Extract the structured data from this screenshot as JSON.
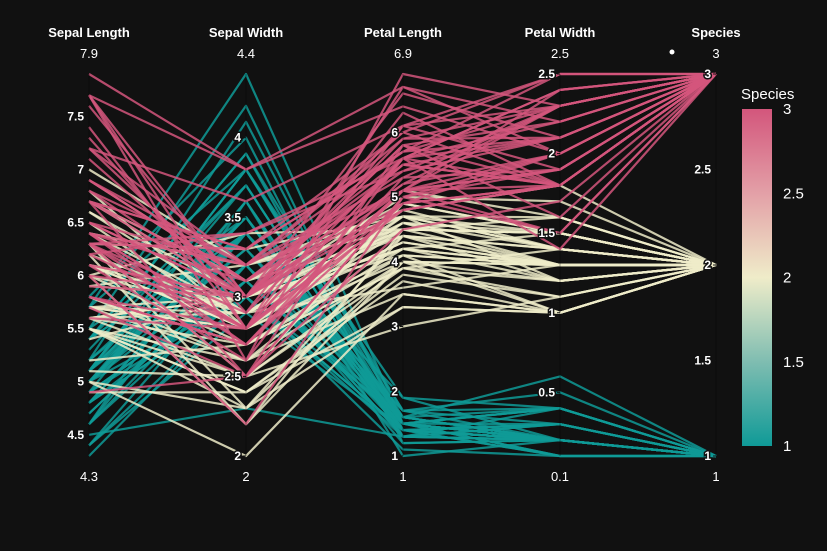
{
  "chart_data": {
    "type": "parallel_coordinates",
    "dimensions": [
      {
        "key": "sepal_length",
        "label": "Sepal Length",
        "range": [
          4.3,
          7.9
        ],
        "min_label": "4.3",
        "max_label": "7.9",
        "ticks": [
          4.5,
          5,
          5.5,
          6,
          6.5,
          7,
          7.5
        ]
      },
      {
        "key": "sepal_width",
        "label": "Sepal Width",
        "range": [
          2,
          4.4
        ],
        "min_label": "2",
        "max_label": "4.4",
        "ticks": [
          2,
          2.5,
          3,
          3.5,
          4
        ]
      },
      {
        "key": "petal_length",
        "label": "Petal Length",
        "range": [
          1,
          6.9
        ],
        "min_label": "1",
        "max_label": "6.9",
        "ticks": [
          1,
          2,
          3,
          4,
          5,
          6
        ]
      },
      {
        "key": "petal_width",
        "label": "Petal Width",
        "range": [
          0.1,
          2.5
        ],
        "min_label": "0.1",
        "max_label": "2.5",
        "ticks": [
          0.5,
          1,
          1.5,
          2,
          2.5
        ]
      },
      {
        "key": "species",
        "label": "Species",
        "range": [
          1,
          3
        ],
        "min_label": "1",
        "max_label": "3",
        "ticks": [
          1,
          1.5,
          2,
          2.5,
          3
        ]
      }
    ],
    "colorscale": {
      "title": "Species",
      "range": [
        1,
        3
      ],
      "ticks": [
        "1",
        "1.5",
        "2",
        "2.5",
        "3"
      ],
      "stops": [
        [
          0,
          "#0f9a97"
        ],
        [
          0.25,
          "#7fbdb1"
        ],
        [
          0.5,
          "#efecc9"
        ],
        [
          0.75,
          "#e3a0a7"
        ],
        [
          1,
          "#d3567c"
        ]
      ]
    },
    "records": [
      [
        5.1,
        3.5,
        1.4,
        0.2,
        1
      ],
      [
        4.9,
        3.0,
        1.4,
        0.2,
        1
      ],
      [
        4.7,
        3.2,
        1.3,
        0.2,
        1
      ],
      [
        4.6,
        3.1,
        1.5,
        0.2,
        1
      ],
      [
        5.0,
        3.6,
        1.4,
        0.2,
        1
      ],
      [
        5.4,
        3.9,
        1.7,
        0.4,
        1
      ],
      [
        4.6,
        3.4,
        1.4,
        0.3,
        1
      ],
      [
        5.0,
        3.4,
        1.5,
        0.2,
        1
      ],
      [
        4.4,
        2.9,
        1.4,
        0.2,
        1
      ],
      [
        4.9,
        3.1,
        1.5,
        0.1,
        1
      ],
      [
        5.4,
        3.7,
        1.5,
        0.2,
        1
      ],
      [
        4.8,
        3.4,
        1.6,
        0.2,
        1
      ],
      [
        4.8,
        3.0,
        1.4,
        0.1,
        1
      ],
      [
        4.3,
        3.0,
        1.1,
        0.1,
        1
      ],
      [
        5.8,
        4.0,
        1.2,
        0.2,
        1
      ],
      [
        5.7,
        4.4,
        1.5,
        0.4,
        1
      ],
      [
        5.4,
        3.9,
        1.3,
        0.4,
        1
      ],
      [
        5.1,
        3.5,
        1.4,
        0.3,
        1
      ],
      [
        5.7,
        3.8,
        1.7,
        0.3,
        1
      ],
      [
        5.1,
        3.8,
        1.5,
        0.3,
        1
      ],
      [
        5.4,
        3.4,
        1.7,
        0.2,
        1
      ],
      [
        5.1,
        3.7,
        1.5,
        0.4,
        1
      ],
      [
        4.6,
        3.6,
        1.0,
        0.2,
        1
      ],
      [
        5.1,
        3.3,
        1.7,
        0.5,
        1
      ],
      [
        4.8,
        3.4,
        1.9,
        0.2,
        1
      ],
      [
        5.0,
        3.0,
        1.6,
        0.2,
        1
      ],
      [
        5.0,
        3.4,
        1.6,
        0.4,
        1
      ],
      [
        5.2,
        3.5,
        1.5,
        0.2,
        1
      ],
      [
        5.2,
        3.4,
        1.4,
        0.2,
        1
      ],
      [
        4.7,
        3.2,
        1.6,
        0.2,
        1
      ],
      [
        4.8,
        3.1,
        1.6,
        0.2,
        1
      ],
      [
        5.4,
        3.4,
        1.5,
        0.4,
        1
      ],
      [
        5.2,
        4.1,
        1.5,
        0.1,
        1
      ],
      [
        5.5,
        4.2,
        1.4,
        0.2,
        1
      ],
      [
        4.9,
        3.1,
        1.5,
        0.2,
        1
      ],
      [
        5.0,
        3.2,
        1.2,
        0.2,
        1
      ],
      [
        5.5,
        3.5,
        1.3,
        0.2,
        1
      ],
      [
        4.9,
        3.6,
        1.4,
        0.1,
        1
      ],
      [
        4.4,
        3.0,
        1.3,
        0.2,
        1
      ],
      [
        5.1,
        3.4,
        1.5,
        0.2,
        1
      ],
      [
        5.0,
        3.5,
        1.3,
        0.3,
        1
      ],
      [
        4.5,
        2.3,
        1.3,
        0.3,
        1
      ],
      [
        4.4,
        3.2,
        1.3,
        0.2,
        1
      ],
      [
        5.0,
        3.5,
        1.6,
        0.6,
        1
      ],
      [
        5.1,
        3.8,
        1.9,
        0.4,
        1
      ],
      [
        4.8,
        3.0,
        1.4,
        0.3,
        1
      ],
      [
        5.1,
        3.8,
        1.6,
        0.2,
        1
      ],
      [
        4.6,
        3.2,
        1.4,
        0.2,
        1
      ],
      [
        5.3,
        3.7,
        1.5,
        0.2,
        1
      ],
      [
        5.0,
        3.3,
        1.4,
        0.2,
        1
      ],
      [
        7.0,
        3.2,
        4.7,
        1.4,
        2
      ],
      [
        6.4,
        3.2,
        4.5,
        1.5,
        2
      ],
      [
        6.9,
        3.1,
        4.9,
        1.5,
        2
      ],
      [
        5.5,
        2.3,
        4.0,
        1.3,
        2
      ],
      [
        6.5,
        2.8,
        4.6,
        1.5,
        2
      ],
      [
        5.7,
        2.8,
        4.5,
        1.3,
        2
      ],
      [
        6.3,
        3.3,
        4.7,
        1.6,
        2
      ],
      [
        4.9,
        2.4,
        3.3,
        1.0,
        2
      ],
      [
        6.6,
        2.9,
        4.6,
        1.3,
        2
      ],
      [
        5.2,
        2.7,
        3.9,
        1.4,
        2
      ],
      [
        5.0,
        2.0,
        3.5,
        1.0,
        2
      ],
      [
        5.9,
        3.0,
        4.2,
        1.5,
        2
      ],
      [
        6.0,
        2.2,
        4.0,
        1.0,
        2
      ],
      [
        6.1,
        2.9,
        4.7,
        1.4,
        2
      ],
      [
        5.6,
        2.9,
        3.6,
        1.3,
        2
      ],
      [
        6.7,
        3.1,
        4.4,
        1.4,
        2
      ],
      [
        5.6,
        3.0,
        4.5,
        1.5,
        2
      ],
      [
        5.8,
        2.7,
        4.1,
        1.0,
        2
      ],
      [
        6.2,
        2.2,
        4.5,
        1.5,
        2
      ],
      [
        5.6,
        2.5,
        3.9,
        1.1,
        2
      ],
      [
        5.9,
        3.2,
        4.8,
        1.8,
        2
      ],
      [
        6.1,
        2.8,
        4.0,
        1.3,
        2
      ],
      [
        6.3,
        2.5,
        4.9,
        1.5,
        2
      ],
      [
        6.1,
        2.8,
        4.7,
        1.2,
        2
      ],
      [
        6.4,
        2.9,
        4.3,
        1.3,
        2
      ],
      [
        6.6,
        3.0,
        4.4,
        1.4,
        2
      ],
      [
        6.8,
        2.8,
        4.8,
        1.4,
        2
      ],
      [
        6.7,
        3.0,
        5.0,
        1.7,
        2
      ],
      [
        6.0,
        2.9,
        4.5,
        1.5,
        2
      ],
      [
        5.7,
        2.6,
        3.5,
        1.0,
        2
      ],
      [
        5.5,
        2.4,
        3.8,
        1.1,
        2
      ],
      [
        5.5,
        2.4,
        3.7,
        1.0,
        2
      ],
      [
        5.8,
        2.7,
        3.9,
        1.2,
        2
      ],
      [
        6.0,
        2.7,
        5.1,
        1.6,
        2
      ],
      [
        5.4,
        3.0,
        4.5,
        1.5,
        2
      ],
      [
        6.0,
        3.4,
        4.5,
        1.6,
        2
      ],
      [
        6.7,
        3.1,
        4.7,
        1.5,
        2
      ],
      [
        6.3,
        2.3,
        4.4,
        1.3,
        2
      ],
      [
        5.6,
        3.0,
        4.1,
        1.3,
        2
      ],
      [
        5.5,
        2.5,
        4.0,
        1.3,
        2
      ],
      [
        5.5,
        2.6,
        4.4,
        1.2,
        2
      ],
      [
        6.1,
        3.0,
        4.6,
        1.4,
        2
      ],
      [
        5.8,
        2.6,
        4.0,
        1.2,
        2
      ],
      [
        5.0,
        2.3,
        3.3,
        1.0,
        2
      ],
      [
        5.6,
        2.7,
        4.2,
        1.3,
        2
      ],
      [
        5.7,
        3.0,
        4.2,
        1.2,
        2
      ],
      [
        5.7,
        2.9,
        4.2,
        1.3,
        2
      ],
      [
        6.2,
        2.9,
        4.3,
        1.3,
        2
      ],
      [
        5.1,
        2.5,
        3.0,
        1.1,
        2
      ],
      [
        5.7,
        2.8,
        4.1,
        1.3,
        2
      ],
      [
        6.3,
        3.3,
        6.0,
        2.5,
        3
      ],
      [
        5.8,
        2.7,
        5.1,
        1.9,
        3
      ],
      [
        7.1,
        3.0,
        5.9,
        2.1,
        3
      ],
      [
        6.3,
        2.9,
        5.6,
        1.8,
        3
      ],
      [
        6.5,
        3.0,
        5.8,
        2.2,
        3
      ],
      [
        7.6,
        3.0,
        6.6,
        2.1,
        3
      ],
      [
        4.9,
        2.5,
        4.5,
        1.7,
        3
      ],
      [
        7.3,
        2.9,
        6.3,
        1.8,
        3
      ],
      [
        6.7,
        2.5,
        5.8,
        1.8,
        3
      ],
      [
        7.2,
        3.6,
        6.1,
        2.5,
        3
      ],
      [
        6.5,
        3.2,
        5.1,
        2.0,
        3
      ],
      [
        6.4,
        2.7,
        5.3,
        1.9,
        3
      ],
      [
        6.8,
        3.0,
        5.5,
        2.1,
        3
      ],
      [
        5.7,
        2.5,
        5.0,
        2.0,
        3
      ],
      [
        5.8,
        2.8,
        5.1,
        2.4,
        3
      ],
      [
        6.4,
        3.2,
        5.3,
        2.3,
        3
      ],
      [
        6.5,
        3.0,
        5.5,
        1.8,
        3
      ],
      [
        7.7,
        3.8,
        6.7,
        2.2,
        3
      ],
      [
        7.7,
        2.6,
        6.9,
        2.3,
        3
      ],
      [
        6.0,
        2.2,
        5.0,
        1.5,
        3
      ],
      [
        6.9,
        3.2,
        5.7,
        2.3,
        3
      ],
      [
        5.6,
        2.8,
        4.9,
        2.0,
        3
      ],
      [
        7.7,
        2.8,
        6.7,
        2.0,
        3
      ],
      [
        6.3,
        2.7,
        4.9,
        1.8,
        3
      ],
      [
        6.7,
        3.3,
        5.7,
        2.1,
        3
      ],
      [
        7.2,
        3.2,
        6.0,
        1.8,
        3
      ],
      [
        6.2,
        2.8,
        4.8,
        1.8,
        3
      ],
      [
        6.1,
        3.0,
        4.9,
        1.8,
        3
      ],
      [
        6.4,
        2.8,
        5.6,
        2.1,
        3
      ],
      [
        7.2,
        3.0,
        5.8,
        1.6,
        3
      ],
      [
        7.4,
        2.8,
        6.1,
        1.9,
        3
      ],
      [
        7.9,
        3.8,
        6.4,
        2.0,
        3
      ],
      [
        6.4,
        2.8,
        5.6,
        2.2,
        3
      ],
      [
        6.3,
        2.8,
        5.1,
        1.5,
        3
      ],
      [
        6.1,
        2.6,
        5.6,
        1.4,
        3
      ],
      [
        7.7,
        3.0,
        6.1,
        2.3,
        3
      ],
      [
        6.3,
        3.4,
        5.6,
        2.4,
        3
      ],
      [
        6.4,
        3.1,
        5.5,
        1.8,
        3
      ],
      [
        6.0,
        3.0,
        4.8,
        1.8,
        3
      ],
      [
        6.9,
        3.1,
        5.4,
        2.1,
        3
      ],
      [
        6.7,
        3.1,
        5.6,
        2.4,
        3
      ],
      [
        6.9,
        3.1,
        5.1,
        2.3,
        3
      ],
      [
        5.8,
        2.7,
        5.1,
        1.9,
        3
      ],
      [
        6.8,
        3.2,
        5.9,
        2.3,
        3
      ],
      [
        6.7,
        3.3,
        5.7,
        2.5,
        3
      ],
      [
        6.7,
        3.0,
        5.2,
        2.3,
        3
      ],
      [
        6.3,
        2.5,
        5.0,
        1.9,
        3
      ],
      [
        6.5,
        3.0,
        5.2,
        2.0,
        3
      ],
      [
        6.2,
        3.4,
        5.4,
        2.3,
        3
      ],
      [
        5.9,
        3.0,
        5.1,
        1.8,
        3
      ]
    ]
  }
}
